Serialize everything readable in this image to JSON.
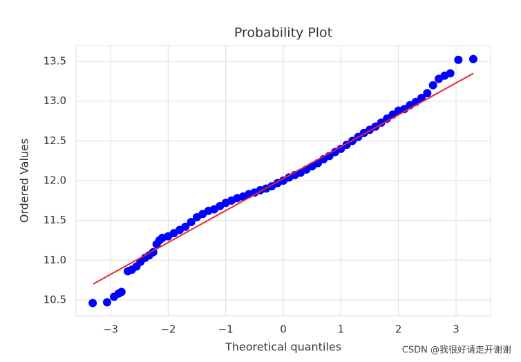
{
  "chart_data": {
    "type": "scatter",
    "title": "Probability Plot",
    "x_label": "Theoretical quantiles",
    "y_label": "Ordered Values",
    "x": [
      -3.31,
      -3.06,
      -2.94,
      -2.86,
      -2.81,
      -2.7,
      -2.63,
      -2.55,
      -2.48,
      -2.4,
      -2.33,
      -2.26,
      -2.2,
      -2.15,
      -2.1,
      -2.0,
      -1.9,
      -1.8,
      -1.7,
      -1.6,
      -1.5,
      -1.4,
      -1.3,
      -1.2,
      -1.1,
      -1.0,
      -0.9,
      -0.8,
      -0.7,
      -0.6,
      -0.5,
      -0.4,
      -0.3,
      -0.2,
      -0.1,
      0,
      0.1,
      0.2,
      0.3,
      0.4,
      0.5,
      0.6,
      0.7,
      0.8,
      0.9,
      1.0,
      1.1,
      1.2,
      1.3,
      1.4,
      1.5,
      1.6,
      1.7,
      1.8,
      1.9,
      2.0,
      2.1,
      2.2,
      2.3,
      2.4,
      2.5,
      2.6,
      2.7,
      2.8,
      2.9,
      3.04,
      3.3
    ],
    "values": [
      10.46,
      10.47,
      10.54,
      10.58,
      10.6,
      10.86,
      10.88,
      10.92,
      10.98,
      11.03,
      11.06,
      11.1,
      11.2,
      11.25,
      11.28,
      11.3,
      11.34,
      11.38,
      11.42,
      11.48,
      11.54,
      11.58,
      11.62,
      11.64,
      11.68,
      11.72,
      11.75,
      11.78,
      11.8,
      11.83,
      11.85,
      11.88,
      11.9,
      11.93,
      11.97,
      12.0,
      12.04,
      12.07,
      12.1,
      12.14,
      12.18,
      12.22,
      12.27,
      12.31,
      12.36,
      12.4,
      12.45,
      12.5,
      12.55,
      12.6,
      12.64,
      12.68,
      12.73,
      12.78,
      12.83,
      12.88,
      12.9,
      12.95,
      12.99,
      13.04,
      13.1,
      13.2,
      13.28,
      13.32,
      13.35,
      13.52,
      13.53
    ],
    "color": "#0000ff",
    "fit_line": {
      "x": [
        -3.3,
        3.3
      ],
      "values": [
        10.7,
        13.35
      ],
      "color": "#e8262a"
    },
    "xlim": [
      -3.6,
      3.6
    ],
    "xticks": [
      {
        "value": -3,
        "label": "−3"
      },
      {
        "value": -2,
        "label": "−2"
      },
      {
        "value": -1,
        "label": "−1"
      },
      0,
      1,
      2,
      3
    ],
    "ylim": [
      10.3,
      13.7
    ],
    "yticks": [
      10.5,
      {
        "value": 11,
        "label": "11.0"
      },
      11.5,
      {
        "value": 12,
        "label": "12.0"
      },
      12.5,
      {
        "value": 13,
        "label": "13.0"
      },
      13.5
    ],
    "grid": true,
    "watermark": "CSDN @我很好请走开谢谢"
  }
}
